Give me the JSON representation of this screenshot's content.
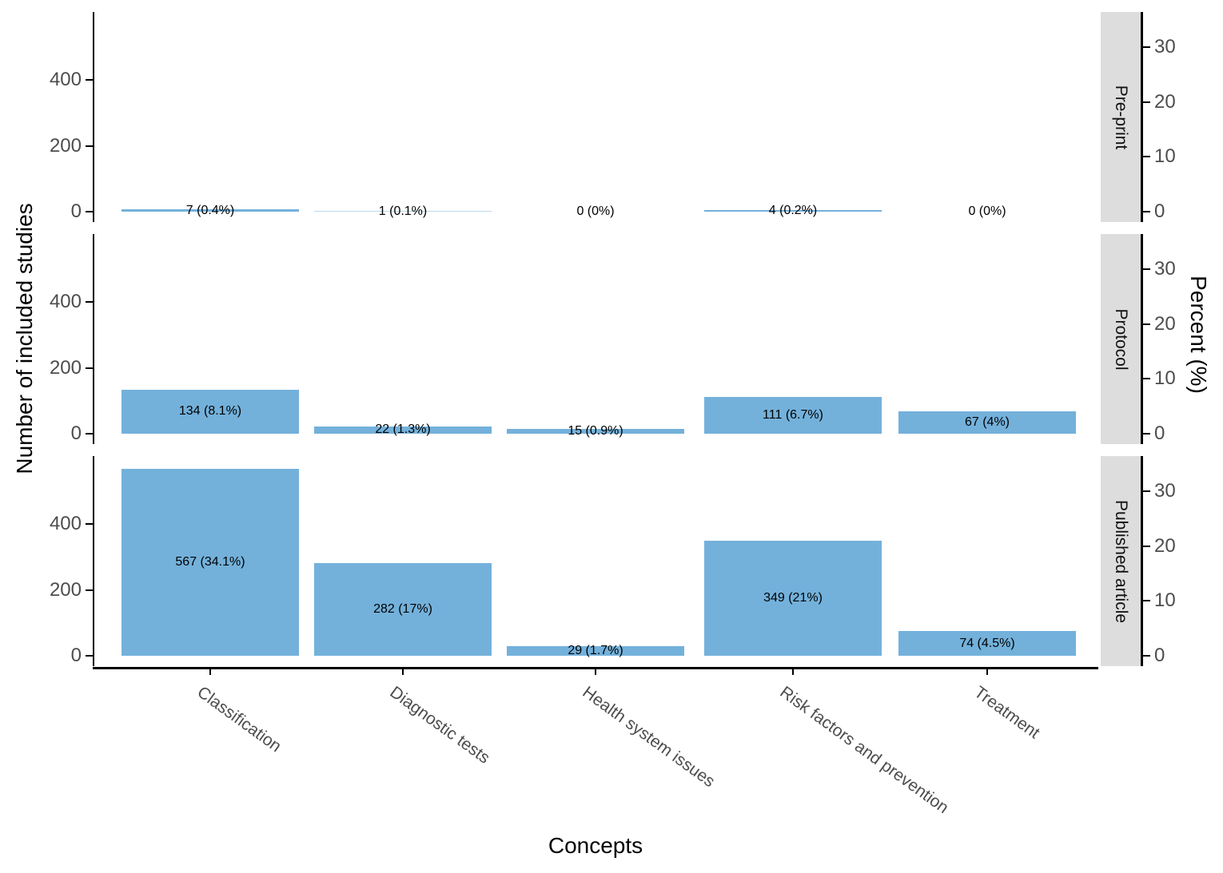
{
  "figure": {
    "background": "#ffffff"
  },
  "chart_data": {
    "type": "bar",
    "facet_layout": "rows",
    "grid": false,
    "legend": false,
    "xlabel": "Concepts",
    "categories": [
      "Classification",
      "Diagnostic tests",
      "Health system issues",
      "Risk factors and prevention",
      "Treatment"
    ],
    "left_axis": {
      "title": "Number of included studies",
      "ticks": [
        "0",
        "200",
        "400"
      ],
      "tick_values": [
        0,
        200,
        400
      ],
      "range": [
        0,
        600
      ]
    },
    "right_axis": {
      "title": "Percent (%)",
      "ticks": [
        "0",
        "10",
        "20",
        "30"
      ],
      "tick_values": [
        0,
        10,
        20,
        30
      ],
      "range": [
        0,
        36
      ]
    },
    "facets": [
      {
        "label": "Pre-print",
        "values": [
          7,
          1,
          0,
          4,
          0
        ],
        "percent": [
          0.4,
          0.1,
          0,
          0.2,
          0
        ],
        "bar_labels": [
          "7 (0.4%)",
          "1 (0.1%)",
          "0 (0%)",
          "4 (0.2%)",
          "0 (0%)"
        ]
      },
      {
        "label": "Protocol",
        "values": [
          134,
          22,
          15,
          111,
          67
        ],
        "percent": [
          8.1,
          1.3,
          0.9,
          6.7,
          4
        ],
        "bar_labels": [
          "134 (8.1%)",
          "22 (1.3%)",
          "15 (0.9%)",
          "111 (6.7%)",
          "67 (4%)"
        ]
      },
      {
        "label": "Published article",
        "values": [
          567,
          282,
          29,
          349,
          74
        ],
        "percent": [
          34.1,
          17,
          1.7,
          21,
          4.5
        ],
        "bar_labels": [
          "567 (34.1%)",
          "282 (17%)",
          "29 (1.7%)",
          "349 (21%)",
          "74 (4.5%)"
        ]
      }
    ],
    "colors": {
      "bar": "#73b1db",
      "strip_bg": "#dddddd",
      "axis_line": "#000000",
      "axis_text": "#4d4d4d",
      "title_text": "#000000",
      "bar_label_text": "#000000"
    }
  }
}
